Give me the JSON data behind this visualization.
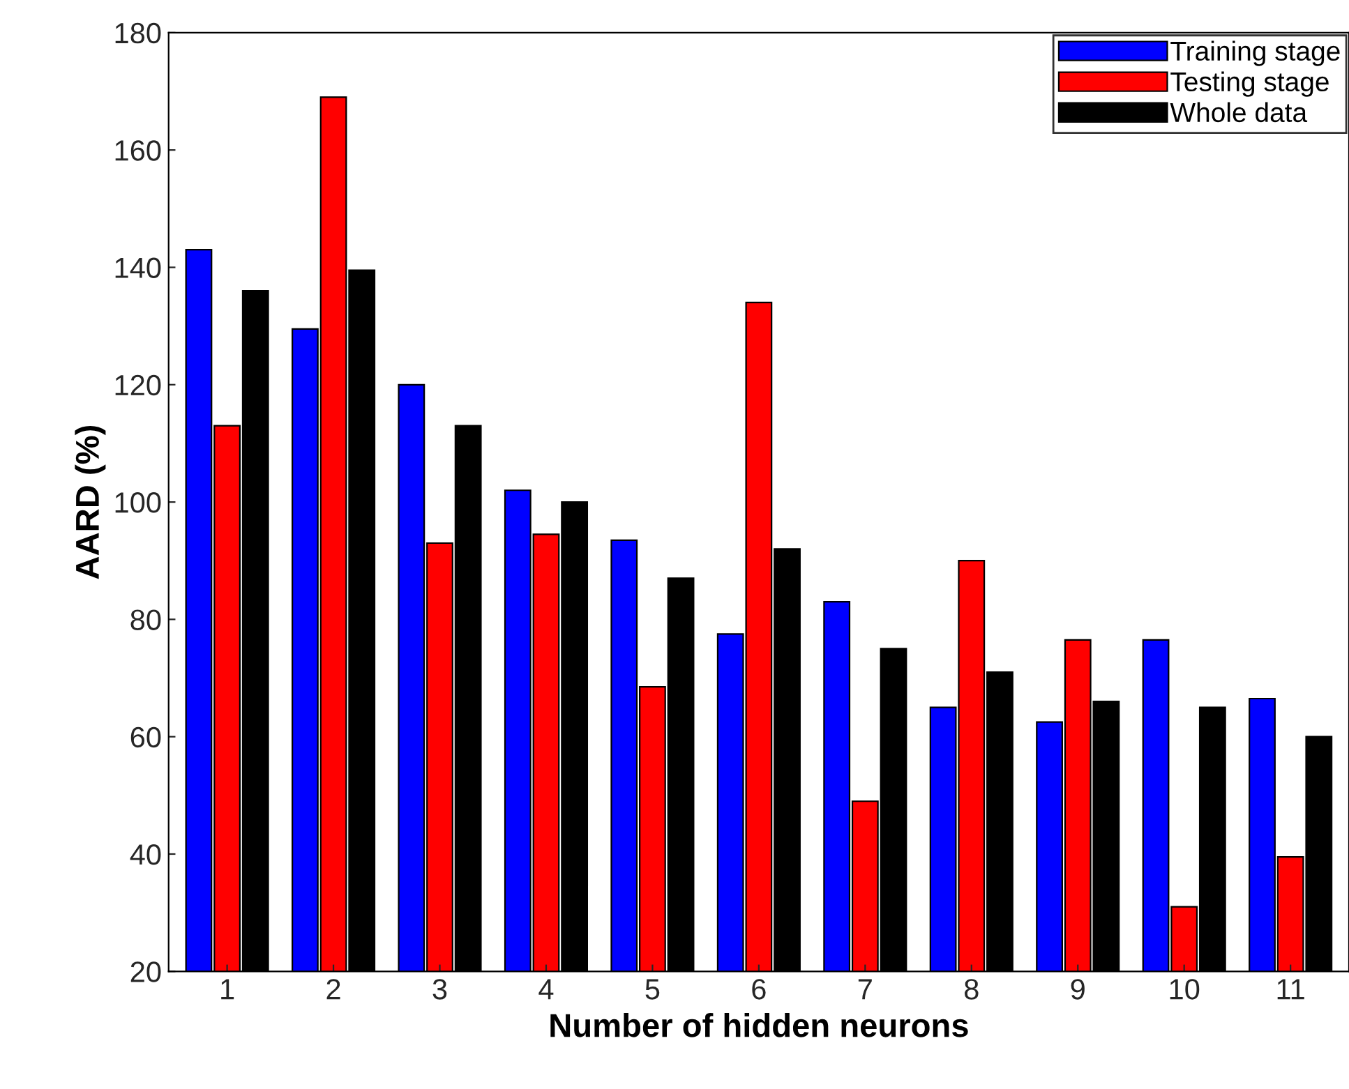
{
  "chart_data": {
    "type": "bar",
    "xlabel": "Number of hidden neurons",
    "ylabel": "AARD (%)",
    "categories": [
      "1",
      "2",
      "3",
      "4",
      "5",
      "6",
      "7",
      "8",
      "9",
      "10",
      "11"
    ],
    "series": [
      {
        "name": "Training stage",
        "color": "#0000ff",
        "values": [
          143,
          129.5,
          120,
          102,
          93.5,
          77.5,
          83,
          65,
          62.5,
          76.5,
          66.5
        ]
      },
      {
        "name": "Testing stage",
        "color": "#ff0000",
        "values": [
          113,
          169,
          93,
          94.5,
          68.5,
          134,
          49,
          90,
          76.5,
          31,
          39.5
        ]
      },
      {
        "name": "Whole data",
        "color": "#000000",
        "values": [
          136,
          139.5,
          113,
          100,
          87,
          92,
          75,
          71,
          66,
          65,
          60
        ]
      }
    ],
    "ylim": [
      20,
      180
    ],
    "yticks": [
      20,
      40,
      60,
      80,
      100,
      120,
      140,
      160,
      180
    ],
    "legend": "top right",
    "grid": false
  }
}
